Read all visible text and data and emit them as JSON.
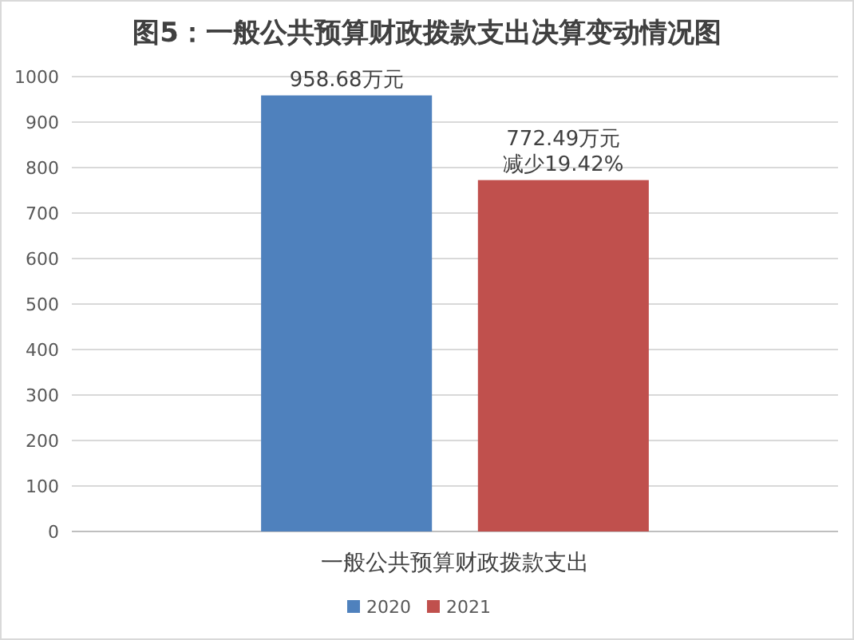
{
  "chart_data": {
    "type": "bar",
    "title": "图5：一般公共预算财政拨款支出决算变动情况图",
    "categories": [
      "一般公共预算财政拨款支出"
    ],
    "series": [
      {
        "name": "2020",
        "color": "#4f81bd",
        "values": [
          958.68
        ],
        "value_labels": [
          "958.68万元"
        ]
      },
      {
        "name": "2021",
        "color": "#c0504d",
        "values": [
          772.49
        ],
        "value_labels": [
          "772.49万元"
        ]
      }
    ],
    "annotations": [
      "减少19.42%"
    ],
    "ylim": [
      0,
      1000
    ],
    "yticks": [
      0,
      100,
      200,
      300,
      400,
      500,
      600,
      700,
      800,
      900,
      1000
    ],
    "grid": "y",
    "legend": "bottom"
  }
}
